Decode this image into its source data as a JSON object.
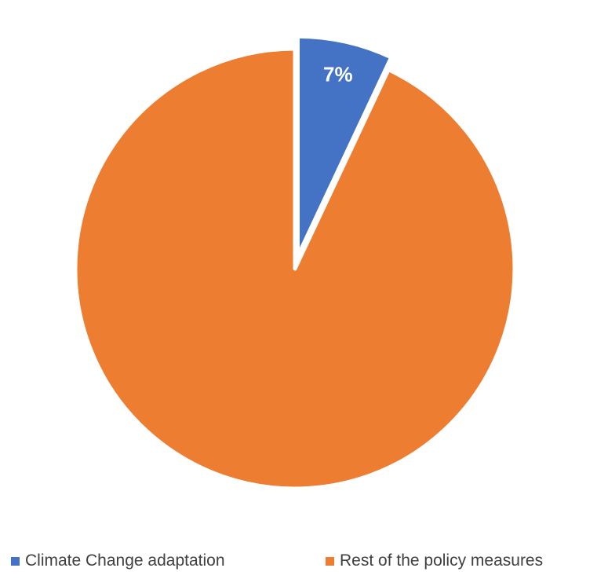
{
  "chart_data": {
    "type": "pie",
    "title": "",
    "slices": [
      {
        "label": "Climate Change adaptation",
        "value": 7,
        "display": "7%",
        "color": "#4472C4",
        "exploded": true
      },
      {
        "label": "Rest of the policy measures",
        "value": 93,
        "display": "",
        "color": "#ED7D31",
        "exploded": false
      }
    ],
    "legend_position": "bottom"
  }
}
